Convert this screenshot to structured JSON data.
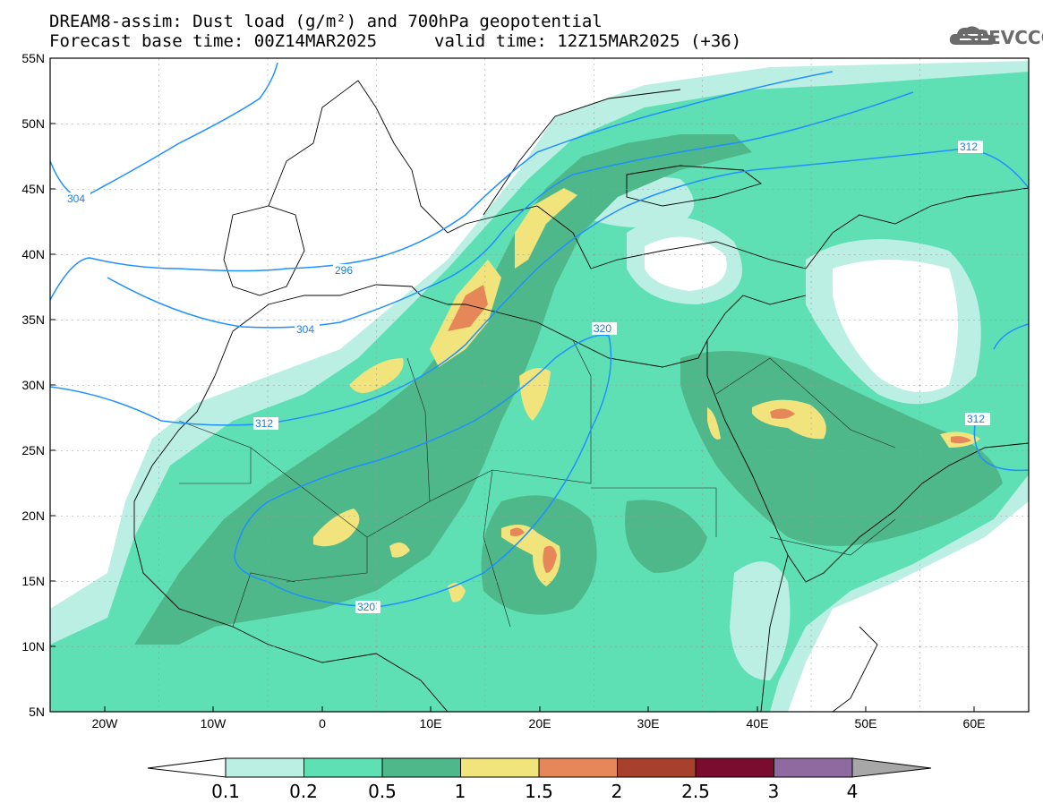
{
  "header": {
    "line1": "DREAM8-assim: Dust load (g/m²) and 700hPa geopotential",
    "base_time": "Forecast base time: 00Z14MAR2025",
    "valid_time": "valid time: 12Z15MAR2025 (+36)"
  },
  "logo": {
    "text": "SEEVCCC",
    "icon": "cloud-logo-icon"
  },
  "map": {
    "lat_labels": [
      "55N",
      "50N",
      "45N",
      "40N",
      "35N",
      "30N",
      "25N",
      "20N",
      "15N",
      "10N",
      "5N"
    ],
    "lon_labels": [
      "20W",
      "10W",
      "0",
      "10E",
      "20E",
      "30E",
      "40E",
      "50E",
      "60E"
    ],
    "contour_labels": [
      "304",
      "296",
      "304",
      "312",
      "320",
      "320",
      "312",
      "312"
    ]
  },
  "colorbar": {
    "labels": [
      "0.1",
      "0.2",
      "0.5",
      "1",
      "1.5",
      "2",
      "2.5",
      "3",
      "4"
    ],
    "colors": [
      "#bcefe3",
      "#5fe0b4",
      "#4fb88a",
      "#f1e47c",
      "#e6875a",
      "#a8402e",
      "#7a0c30",
      "#8f6aa1"
    ],
    "under_color": "#ffffff",
    "over_color": "#a7a7a7"
  }
}
